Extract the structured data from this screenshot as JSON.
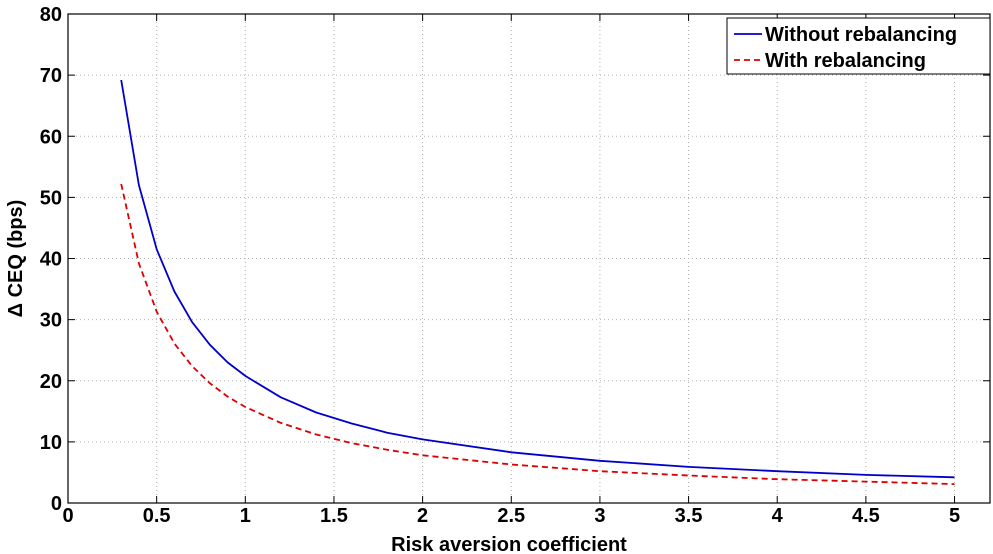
{
  "chart_data": {
    "type": "line",
    "title": "",
    "xlabel": "Risk aversion coefficient",
    "ylabel": "Δ CEQ (bps)",
    "xlim": [
      0,
      5.2
    ],
    "ylim": [
      0,
      80
    ],
    "xticks": [
      0,
      0.5,
      1,
      1.5,
      2,
      2.5,
      3,
      3.5,
      4,
      4.5,
      5
    ],
    "xtick_labels": [
      "0",
      "0.5",
      "1",
      "1.5",
      "2",
      "2.5",
      "3",
      "3.5",
      "4",
      "4.5",
      "5"
    ],
    "yticks": [
      0,
      10,
      20,
      30,
      40,
      50,
      60,
      70,
      80
    ],
    "ytick_labels": [
      "0",
      "10",
      "20",
      "30",
      "40",
      "50",
      "60",
      "70",
      "80"
    ],
    "grid": true,
    "legend_position": "top-right",
    "x": [
      0.3,
      0.4,
      0.5,
      0.6,
      0.7,
      0.8,
      0.9,
      1.0,
      1.2,
      1.4,
      1.6,
      1.8,
      2.0,
      2.5,
      3.0,
      3.5,
      4.0,
      4.5,
      5.0
    ],
    "series": [
      {
        "name": "Without rebalancing",
        "color": "#0000cc",
        "line_style": "solid",
        "values": [
          69.2,
          52.0,
          41.5,
          34.6,
          29.6,
          25.9,
          23.0,
          20.8,
          17.3,
          14.8,
          13.0,
          11.5,
          10.4,
          8.3,
          6.9,
          5.9,
          5.2,
          4.6,
          4.2
        ]
      },
      {
        "name": "With rebalancing",
        "color": "#dd0000",
        "line_style": "dashed",
        "values": [
          52.2,
          39.2,
          31.3,
          26.1,
          22.4,
          19.6,
          17.4,
          15.7,
          13.1,
          11.2,
          9.8,
          8.7,
          7.8,
          6.3,
          5.2,
          4.5,
          3.9,
          3.5,
          3.1
        ]
      }
    ]
  }
}
